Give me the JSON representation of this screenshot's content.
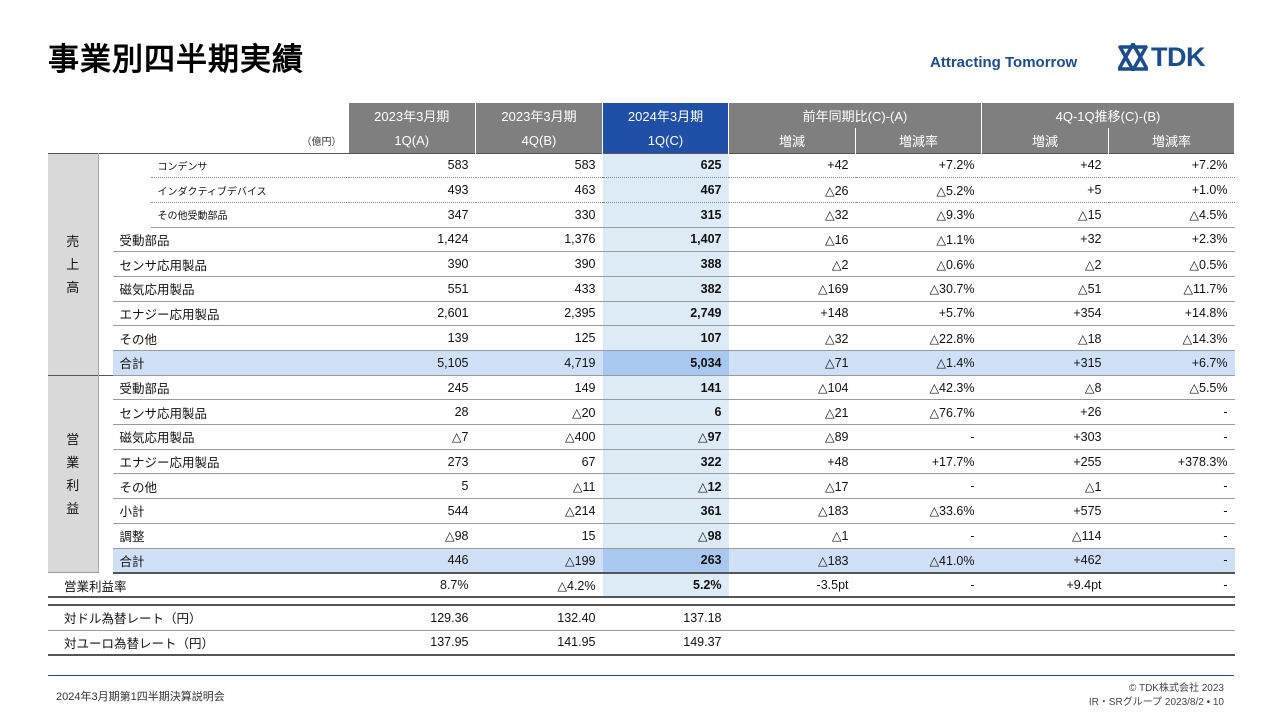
{
  "page_title": "事業別四半期実績",
  "tagline": "Attracting Tomorrow",
  "brand": "TDK",
  "unit": "（億円）",
  "headers": {
    "p1_year": "2023年3月期",
    "p1_q": "1Q(A)",
    "p2_year": "2023年3月期",
    "p2_q": "4Q(B)",
    "p3_year": "2024年3月期",
    "p3_q": "1Q(C)",
    "yoy": "前年同期比(C)-(A)",
    "qoq": "4Q-1Q推移(C)-(B)",
    "change": "増減",
    "rate": "増減率"
  },
  "sales_label": "売上高",
  "op_label": "営業利益",
  "sales_rows": [
    {
      "label": "コンデンサ",
      "a": "583",
      "b": "583",
      "c": "625",
      "yoy": "+42",
      "yoyr": "+7.2%",
      "qoq": "+42",
      "qoqr": "+7.2%"
    },
    {
      "label": "インダクティブデバイス",
      "a": "493",
      "b": "463",
      "c": "467",
      "yoy": "△26",
      "yoyr": "△5.2%",
      "qoq": "+5",
      "qoqr": "+1.0%"
    },
    {
      "label": "その他受動部品",
      "a": "347",
      "b": "330",
      "c": "315",
      "yoy": "△32",
      "yoyr": "△9.3%",
      "qoq": "△15",
      "qoqr": "△4.5%"
    },
    {
      "label": "受動部品",
      "a": "1,424",
      "b": "1,376",
      "c": "1,407",
      "yoy": "△16",
      "yoyr": "△1.1%",
      "qoq": "+32",
      "qoqr": "+2.3%"
    },
    {
      "label": "センサ応用製品",
      "a": "390",
      "b": "390",
      "c": "388",
      "yoy": "△2",
      "yoyr": "△0.6%",
      "qoq": "△2",
      "qoqr": "△0.5%"
    },
    {
      "label": "磁気応用製品",
      "a": "551",
      "b": "433",
      "c": "382",
      "yoy": "△169",
      "yoyr": "△30.7%",
      "qoq": "△51",
      "qoqr": "△11.7%"
    },
    {
      "label": "エナジー応用製品",
      "a": "2,601",
      "b": "2,395",
      "c": "2,749",
      "yoy": "+148",
      "yoyr": "+5.7%",
      "qoq": "+354",
      "qoqr": "+14.8%"
    },
    {
      "label": "その他",
      "a": "139",
      "b": "125",
      "c": "107",
      "yoy": "△32",
      "yoyr": "△22.8%",
      "qoq": "△18",
      "qoqr": "△14.3%"
    },
    {
      "label": "合計",
      "a": "5,105",
      "b": "4,719",
      "c": "5,034",
      "yoy": "△71",
      "yoyr": "△1.4%",
      "qoq": "+315",
      "qoqr": "+6.7%"
    }
  ],
  "op_rows": [
    {
      "label": "受動部品",
      "a": "245",
      "b": "149",
      "c": "141",
      "yoy": "△104",
      "yoyr": "△42.3%",
      "qoq": "△8",
      "qoqr": "△5.5%"
    },
    {
      "label": "センサ応用製品",
      "a": "28",
      "b": "△20",
      "c": "6",
      "yoy": "△21",
      "yoyr": "△76.7%",
      "qoq": "+26",
      "qoqr": "-"
    },
    {
      "label": "磁気応用製品",
      "a": "△7",
      "b": "△400",
      "c": "△97",
      "yoy": "△89",
      "yoyr": "-",
      "qoq": "+303",
      "qoqr": "-"
    },
    {
      "label": "エナジー応用製品",
      "a": "273",
      "b": "67",
      "c": "322",
      "yoy": "+48",
      "yoyr": "+17.7%",
      "qoq": "+255",
      "qoqr": "+378.3%"
    },
    {
      "label": "その他",
      "a": "5",
      "b": "△11",
      "c": "△12",
      "yoy": "△17",
      "yoyr": "-",
      "qoq": "△1",
      "qoqr": "-"
    },
    {
      "label": "小計",
      "a": "544",
      "b": "△214",
      "c": "361",
      "yoy": "△183",
      "yoyr": "△33.6%",
      "qoq": "+575",
      "qoqr": "-"
    },
    {
      "label": "調整",
      "a": "△98",
      "b": "15",
      "c": "△98",
      "yoy": "△1",
      "yoyr": "-",
      "qoq": "△114",
      "qoqr": "-"
    },
    {
      "label": "合計",
      "a": "446",
      "b": "△199",
      "c": "263",
      "yoy": "△183",
      "yoyr": "△41.0%",
      "qoq": "+462",
      "qoqr": "-"
    }
  ],
  "margin_row": {
    "label": "営業利益率",
    "a": "8.7%",
    "b": "△4.2%",
    "c": "5.2%",
    "yoy": "-3.5pt",
    "yoyr": "-",
    "qoq": "+9.4pt",
    "qoqr": "-"
  },
  "fx_rows": [
    {
      "label": "対ドル為替レート（円）",
      "a": "129.36",
      "b": "132.40",
      "c": "137.18"
    },
    {
      "label": "対ユーロ為替レート（円）",
      "a": "137.95",
      "b": "141.95",
      "c": "149.37"
    }
  ],
  "footer": {
    "left": "2024年3月期第1四半期決算説明会",
    "copyright": "© TDK株式会社 2023",
    "dept": "IR・SRグループ  2023/8/2 • 10"
  },
  "colors": {
    "brand": "#1b4c8c",
    "header_gray": "#7f7f7f",
    "header_current": "#1f4fa6",
    "current_col": "#ddebf7",
    "total_row": "#cfe0f6"
  }
}
